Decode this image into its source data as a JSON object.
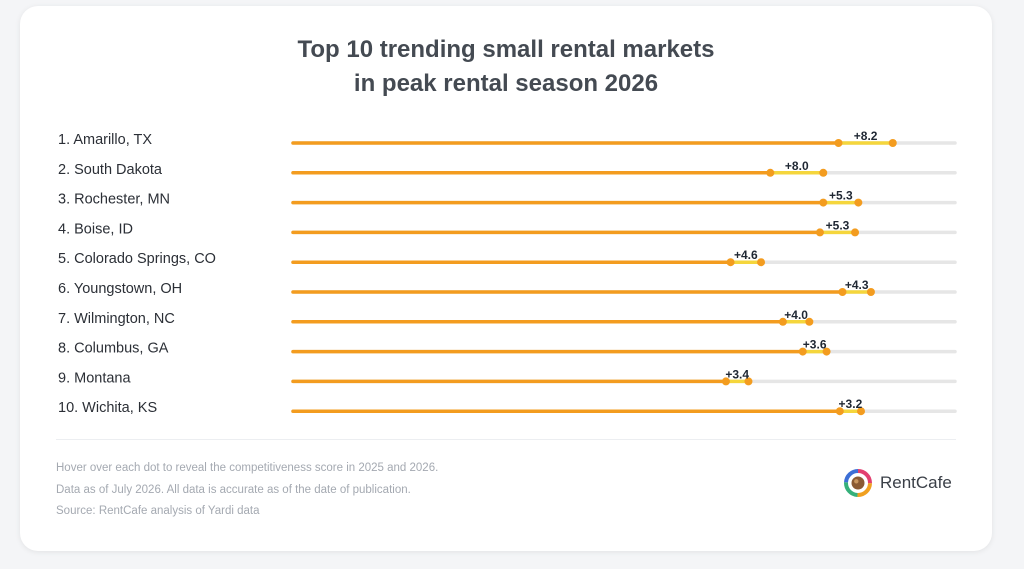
{
  "title_lines": [
    "Top 10 trending small rental markets",
    "in peak rental season 2026"
  ],
  "colors": {
    "bar": "#f39c1f",
    "change_segment": "#f5d63c",
    "track": "#e6e6e6",
    "dot": "#f39c1f"
  },
  "chart_data": {
    "type": "bar",
    "title": "Top 10 trending small rental markets in peak rental season 2026",
    "categories": [
      "1. Amarillo, TX",
      "2. South Dakota",
      "3. Rochester, MN",
      "4. Boise, ID",
      "5. Colorado Springs, CO",
      "6. Youngstown, OH",
      "7. Wilmington, NC",
      "8. Columbus, GA",
      "9. Montana",
      "10. Wichita, KS"
    ],
    "change_labels": [
      "+8.2",
      "+8.0",
      "+5.3",
      "+5.3",
      "+4.6",
      "+4.3",
      "+4.0",
      "+3.6",
      "+3.4",
      "+3.2"
    ],
    "series": [
      {
        "values": [
          82.4,
          72.1,
          80.1,
          79.6,
          66.1,
          83.0,
          74.0,
          77.0,
          65.4,
          82.6
        ]
      },
      {
        "values": [
          90.6,
          80.1,
          85.4,
          84.9,
          70.7,
          87.3,
          78.0,
          80.6,
          68.8,
          85.8
        ]
      }
    ],
    "xlim": [
      0,
      100
    ],
    "grid": false,
    "legend": "none"
  },
  "notes": [
    "Hover over each dot to reveal the competitiveness score in 2025 and 2026.",
    "Data as of July 2026. All data is accurate as of the date of publication.",
    "Source: RentCafe analysis of Yardi data"
  ],
  "brand": {
    "name": "RentCafe",
    "icon": "rentcafe-logo-icon"
  }
}
